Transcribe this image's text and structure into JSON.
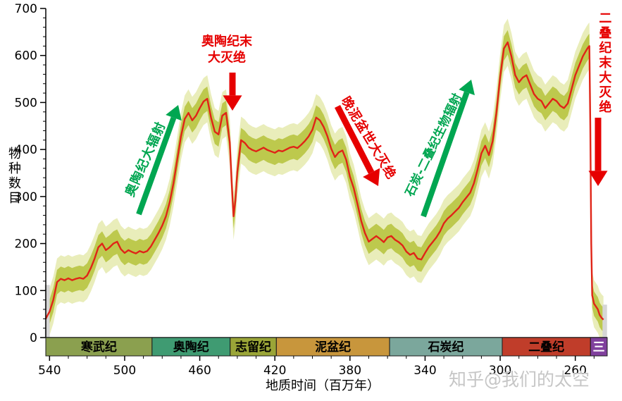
{
  "axes": {
    "y_label": "物种数目",
    "x_label": "地质时间（百万年）",
    "y_ticks": [
      0,
      100,
      200,
      300,
      400,
      500,
      600,
      700
    ],
    "x_ticks": [
      540,
      500,
      460,
      420,
      380,
      340,
      300,
      260
    ]
  },
  "watermark": "知乎@我们的太空",
  "annotations": {
    "ordovician_radiation": {
      "text": "奥陶纪大辐射",
      "color": "#00a651"
    },
    "end_ordovician": {
      "line1": "奥陶纪末",
      "line2": "大灭绝",
      "color": "#e60000"
    },
    "late_devonian": {
      "text": "晚泥盆世大灭绝",
      "color": "#e60000"
    },
    "carb_permian": {
      "text": "石炭-二叠纪生物辐射",
      "color": "#00a651"
    },
    "end_permian": {
      "text": "二叠纪末大灭绝",
      "color": "#e60000"
    }
  },
  "periods": [
    {
      "name": "寒武纪",
      "start": 542,
      "end": 485.4,
      "color": "#8ba04f",
      "text_color": "#000000"
    },
    {
      "name": "奥陶纪",
      "start": 485.4,
      "end": 443.8,
      "color": "#3f9b72",
      "text_color": "#000000"
    },
    {
      "name": "志留纪",
      "start": 443.8,
      "end": 419.2,
      "color": "#9aa537",
      "text_color": "#000000"
    },
    {
      "name": "泥盆纪",
      "start": 419.2,
      "end": 358.9,
      "color": "#c8963c",
      "text_color": "#000000"
    },
    {
      "name": "石炭纪",
      "start": 358.9,
      "end": 298.9,
      "color": "#7ba79c",
      "text_color": "#000000"
    },
    {
      "name": "二叠纪",
      "start": 298.9,
      "end": 251.9,
      "color": "#c03d2a",
      "text_color": "#000000"
    },
    {
      "name": "三",
      "start": 251.9,
      "end": 243,
      "color": "#80409d",
      "text_color": "#ffffff"
    }
  ],
  "chart_data": {
    "type": "line",
    "title": "",
    "xlabel": "地质时间（百万年）",
    "ylabel": "物种数目",
    "xlim": [
      542,
      243
    ],
    "x_axis_reversed": true,
    "ylim": [
      0,
      700
    ],
    "grid": false,
    "band_inner_offset": 26,
    "band_outer_offset": 50,
    "band_inner_color": "#bdc94d",
    "band_outer_color": "#e9edba",
    "edge_bar_color": "#d6d6d6",
    "edge_bars": [
      {
        "x": 541.2,
        "width_myr": 2.6,
        "top": 112
      },
      {
        "x": 244.3,
        "width_myr": 2.4,
        "top": 70
      }
    ],
    "series": [
      {
        "name": "物种数目",
        "color": "#e02417",
        "x": [
          542,
          541,
          540,
          538,
          536,
          534,
          532,
          530,
          528,
          526,
          524,
          522,
          520,
          518,
          516,
          514,
          512,
          510,
          508,
          506,
          504,
          502,
          500,
          498,
          496,
          494,
          492,
          490,
          488,
          486,
          484,
          482,
          480,
          478,
          476,
          474,
          472,
          470,
          468,
          466,
          464,
          462,
          460,
          458,
          456,
          454,
          452,
          450,
          448,
          446,
          444,
          443,
          442,
          441,
          440,
          438,
          436,
          434,
          432,
          430,
          428,
          426,
          424,
          422,
          420,
          418,
          416,
          414,
          412,
          410,
          408,
          406,
          404,
          402,
          400,
          398,
          396,
          394,
          392,
          390,
          388,
          386,
          384,
          382,
          380,
          378,
          376,
          374,
          372,
          370,
          368,
          366,
          364,
          362,
          360,
          358,
          356,
          354,
          352,
          350,
          348,
          346,
          344,
          342,
          340,
          338,
          336,
          334,
          332,
          330,
          328,
          326,
          324,
          322,
          320,
          318,
          316,
          314,
          312,
          310,
          308,
          306,
          304,
          302,
          300,
          298,
          296,
          294,
          292,
          290,
          288,
          286,
          284,
          282,
          280,
          278,
          276,
          274,
          272,
          270,
          268,
          266,
          264,
          262,
          260,
          258,
          256,
          254,
          253,
          252.5,
          252,
          251.5,
          251,
          250,
          249,
          248,
          247,
          246,
          245
        ],
        "y": [
          40,
          48,
          55,
          80,
          118,
          125,
          122,
          126,
          122,
          125,
          127,
          125,
          132,
          148,
          168,
          192,
          200,
          186,
          192,
          200,
          204,
          188,
          180,
          186,
          182,
          179,
          184,
          181,
          184,
          194,
          208,
          222,
          238,
          258,
          288,
          328,
          378,
          428,
          465,
          478,
          462,
          472,
          488,
          502,
          508,
          468,
          438,
          432,
          472,
          478,
          415,
          330,
          258,
          292,
          352,
          420,
          414,
          404,
          399,
          396,
          400,
          404,
          399,
          396,
          393,
          398,
          396,
          400,
          404,
          406,
          403,
          410,
          418,
          428,
          442,
          468,
          462,
          448,
          428,
          402,
          384,
          394,
          398,
          378,
          342,
          318,
          284,
          248,
          222,
          204,
          210,
          216,
          210,
          203,
          213,
          216,
          208,
          203,
          196,
          183,
          176,
          180,
          168,
          166,
          180,
          193,
          203,
          213,
          226,
          243,
          253,
          260,
          268,
          276,
          288,
          298,
          308,
          328,
          358,
          392,
          408,
          388,
          418,
          478,
          555,
          615,
          628,
          598,
          558,
          543,
          553,
          558,
          538,
          518,
          508,
          503,
          488,
          498,
          508,
          503,
          493,
          488,
          498,
          528,
          558,
          578,
          598,
          612,
          618,
          620,
          450,
          200,
          90,
          72,
          66,
          60,
          48,
          42,
          38
        ]
      }
    ]
  }
}
